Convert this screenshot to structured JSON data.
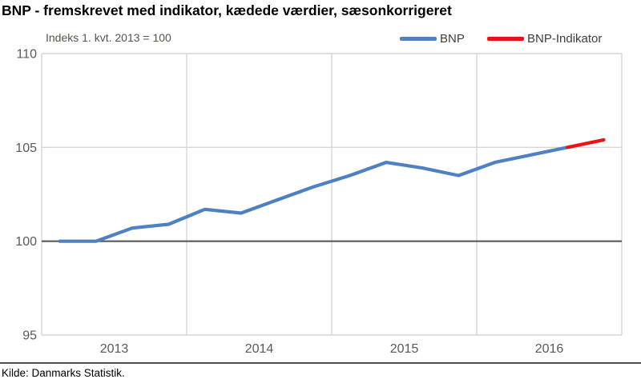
{
  "header": {
    "title": "BNP - fremskrevet med indikator, kædede værdier, sæsonkorrigeret",
    "subtitle": "Indeks 1. kvt. 2013 = 100"
  },
  "legend": [
    {
      "label": "BNP",
      "color": "#4e81c4"
    },
    {
      "label": "BNP-Indikator",
      "color": "#ee1111"
    }
  ],
  "footer": {
    "source": "Kilde: Danmarks Statistik."
  },
  "chart_data": {
    "type": "line",
    "title": "BNP - fremskrevet med indikator, kædede værdier, sæsonkorrigeret",
    "subtitle": "Indeks 1. kvt. 2013 = 100",
    "x_unit": "quarter",
    "quarters": [
      "2013K1",
      "2013K2",
      "2013K3",
      "2013K4",
      "2014K1",
      "2014K2",
      "2014K3",
      "2014K4",
      "2015K1",
      "2015K2",
      "2015K3",
      "2015K4",
      "2016K1",
      "2016K2",
      "2016K3",
      "2016K4"
    ],
    "x_tick_labels": [
      "2013",
      "2014",
      "2015",
      "2016"
    ],
    "y_tick_labels": [
      110,
      105,
      100,
      95
    ],
    "ylim": [
      95,
      110
    ],
    "grid": true,
    "legend_position": "top-right",
    "baseline": {
      "value": 100,
      "color": "#595959"
    },
    "series": [
      {
        "name": "BNP",
        "color": "#4e81c4",
        "start_quarter_index": 0,
        "values": [
          100.0,
          100.0,
          100.7,
          100.9,
          101.7,
          101.5,
          102.2,
          102.9,
          103.5,
          104.2,
          103.9,
          103.5,
          104.2,
          104.6,
          105.0
        ]
      },
      {
        "name": "BNP-Indikator",
        "color": "#ee1111",
        "start_quarter_index": 14,
        "values": [
          105.0,
          105.4
        ]
      }
    ]
  }
}
